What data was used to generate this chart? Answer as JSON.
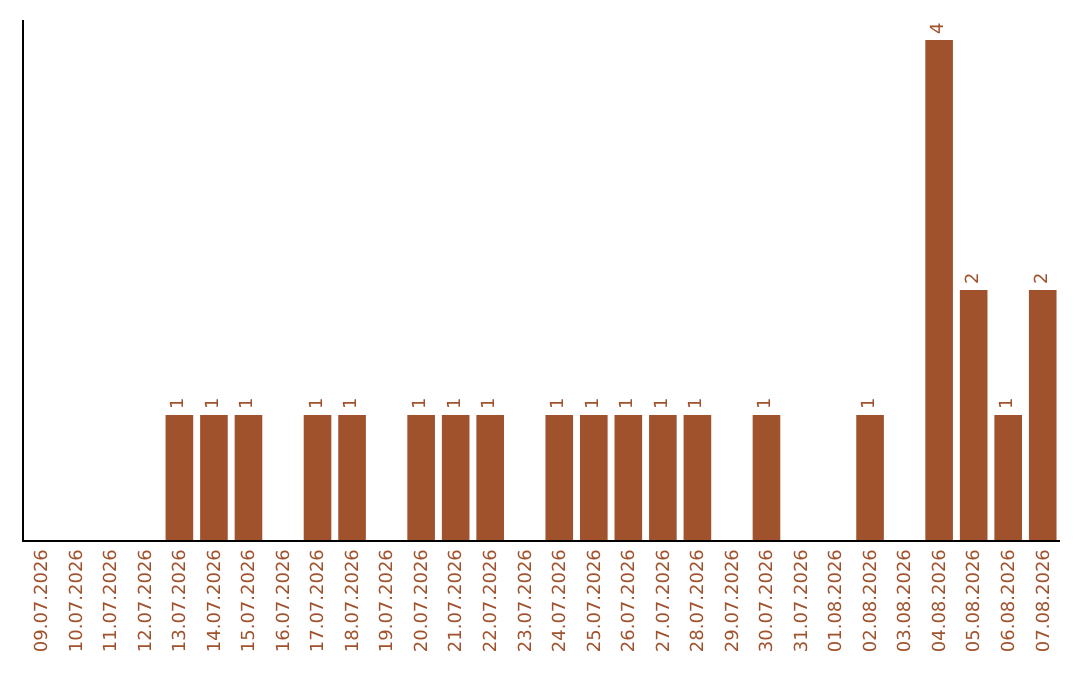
{
  "chart_data": {
    "type": "bar",
    "categories": [
      "09.07.2026",
      "10.07.2026",
      "11.07.2026",
      "12.07.2026",
      "13.07.2026",
      "14.07.2026",
      "15.07.2026",
      "16.07.2026",
      "17.07.2026",
      "18.07.2026",
      "19.07.2026",
      "20.07.2026",
      "21.07.2026",
      "22.07.2026",
      "23.07.2026",
      "24.07.2026",
      "25.07.2026",
      "26.07.2026",
      "27.07.2026",
      "28.07.2026",
      "29.07.2026",
      "30.07.2026",
      "31.07.2026",
      "01.08.2026",
      "02.08.2026",
      "03.08.2026",
      "04.08.2026",
      "05.08.2026",
      "06.08.2026",
      "07.08.2026"
    ],
    "values": [
      0,
      0,
      0,
      0,
      1,
      1,
      1,
      0,
      1,
      1,
      0,
      1,
      1,
      1,
      0,
      1,
      1,
      1,
      1,
      1,
      0,
      1,
      0,
      0,
      1,
      0,
      4,
      2,
      1,
      2
    ],
    "value_labels": [
      null,
      null,
      null,
      null,
      "1",
      "1",
      "1",
      null,
      "1",
      "1",
      null,
      "1",
      "1",
      "1",
      null,
      "1",
      "1",
      "1",
      "1",
      "1",
      null,
      "1",
      null,
      null,
      "1",
      null,
      "4",
      "2",
      "1",
      "2"
    ],
    "color": "#a0522d",
    "grid": false,
    "legend": false,
    "tick_labels": "x"
  }
}
